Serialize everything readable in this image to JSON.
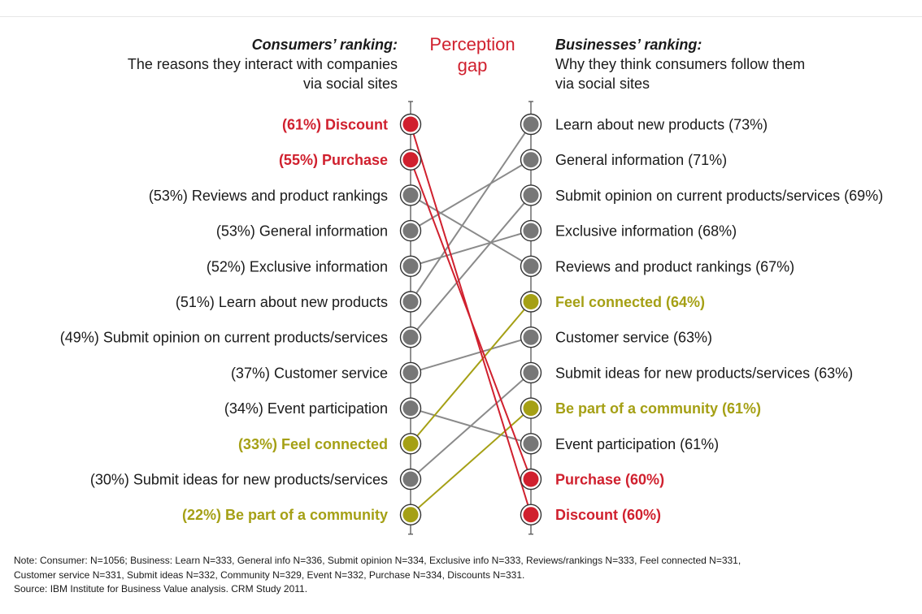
{
  "colors": {
    "highlight_red": "#d0202e",
    "highlight_olive": "#a5a015",
    "neutral": "#777777",
    "line_gray": "#8a8a8a"
  },
  "headers": {
    "left_title": "Consumers’ ranking:",
    "left_subtitle": "The reasons they interact with companies\nvia social sites",
    "gap_title": "Perception\ngap",
    "right_title": "Businesses’ ranking:",
    "right_subtitle": "Why they think consumers follow them\nvia social sites"
  },
  "chart_data": {
    "type": "slope",
    "left_axis": "Consumers’ ranking",
    "right_axis": "Businesses’ ranking",
    "left": [
      {
        "label": "(61%) Discount",
        "item": "Discount",
        "value": 61,
        "group": "red"
      },
      {
        "label": "(55%) Purchase",
        "item": "Purchase",
        "value": 55,
        "group": "red"
      },
      {
        "label": "(53%) Reviews and product rankings",
        "item": "Reviews and product rankings",
        "value": 53,
        "group": "gray"
      },
      {
        "label": "(53%) General information",
        "item": "General information",
        "value": 53,
        "group": "gray"
      },
      {
        "label": "(52%) Exclusive information",
        "item": "Exclusive information",
        "value": 52,
        "group": "gray"
      },
      {
        "label": "(51%) Learn about new products",
        "item": "Learn about new products",
        "value": 51,
        "group": "gray"
      },
      {
        "label": "(49%) Submit opinion on current products/services",
        "item": "Submit opinion on current products/services",
        "value": 49,
        "group": "gray"
      },
      {
        "label": "(37%) Customer service",
        "item": "Customer service",
        "value": 37,
        "group": "gray"
      },
      {
        "label": "(34%) Event participation",
        "item": "Event participation",
        "value": 34,
        "group": "gray"
      },
      {
        "label": "(33%) Feel connected",
        "item": "Feel connected",
        "value": 33,
        "group": "olive"
      },
      {
        "label": "(30%) Submit ideas for new products/services",
        "item": "Submit ideas for new products/services",
        "value": 30,
        "group": "gray"
      },
      {
        "label": "(22%) Be part of a community",
        "item": "Be part of a community",
        "value": 22,
        "group": "olive"
      }
    ],
    "right": [
      {
        "label": "Learn about new products (73%)",
        "item": "Learn about new products",
        "value": 73,
        "group": "gray"
      },
      {
        "label": "General information (71%)",
        "item": "General information",
        "value": 71,
        "group": "gray"
      },
      {
        "label": "Submit opinion on current products/services (69%)",
        "item": "Submit opinion on current products/services",
        "value": 69,
        "group": "gray"
      },
      {
        "label": "Exclusive information (68%)",
        "item": "Exclusive information",
        "value": 68,
        "group": "gray"
      },
      {
        "label": "Reviews and product rankings (67%)",
        "item": "Reviews and product rankings",
        "value": 67,
        "group": "gray"
      },
      {
        "label": "Feel connected (64%)",
        "item": "Feel connected",
        "value": 64,
        "group": "olive"
      },
      {
        "label": "Customer service (63%)",
        "item": "Customer service",
        "value": 63,
        "group": "gray"
      },
      {
        "label": "Submit ideas for new products/services (63%)",
        "item": "Submit ideas for new products/services",
        "value": 63,
        "group": "gray"
      },
      {
        "label": "Be part of a community (61%)",
        "item": "Be part of a community",
        "value": 61,
        "group": "olive"
      },
      {
        "label": "Event participation (61%)",
        "item": "Event participation",
        "value": 61,
        "group": "gray"
      },
      {
        "label": "Purchase (60%)",
        "item": "Purchase",
        "value": 60,
        "group": "red"
      },
      {
        "label": "Discount (60%)",
        "item": "Discount",
        "value": 60,
        "group": "red"
      }
    ]
  },
  "notes": [
    "Note: Consumer: N=1056; Business: Learn N=333, General info N=336, Submit opinion N=334, Exclusive info N=333, Reviews/rankings N=333, Feel connected N=331,",
    "Customer service N=331, Submit ideas N=332, Community N=329, Event N=332, Purchase N=334, Discounts N=331.",
    "Source: IBM Institute for Business Value analysis. CRM Study 2011."
  ]
}
